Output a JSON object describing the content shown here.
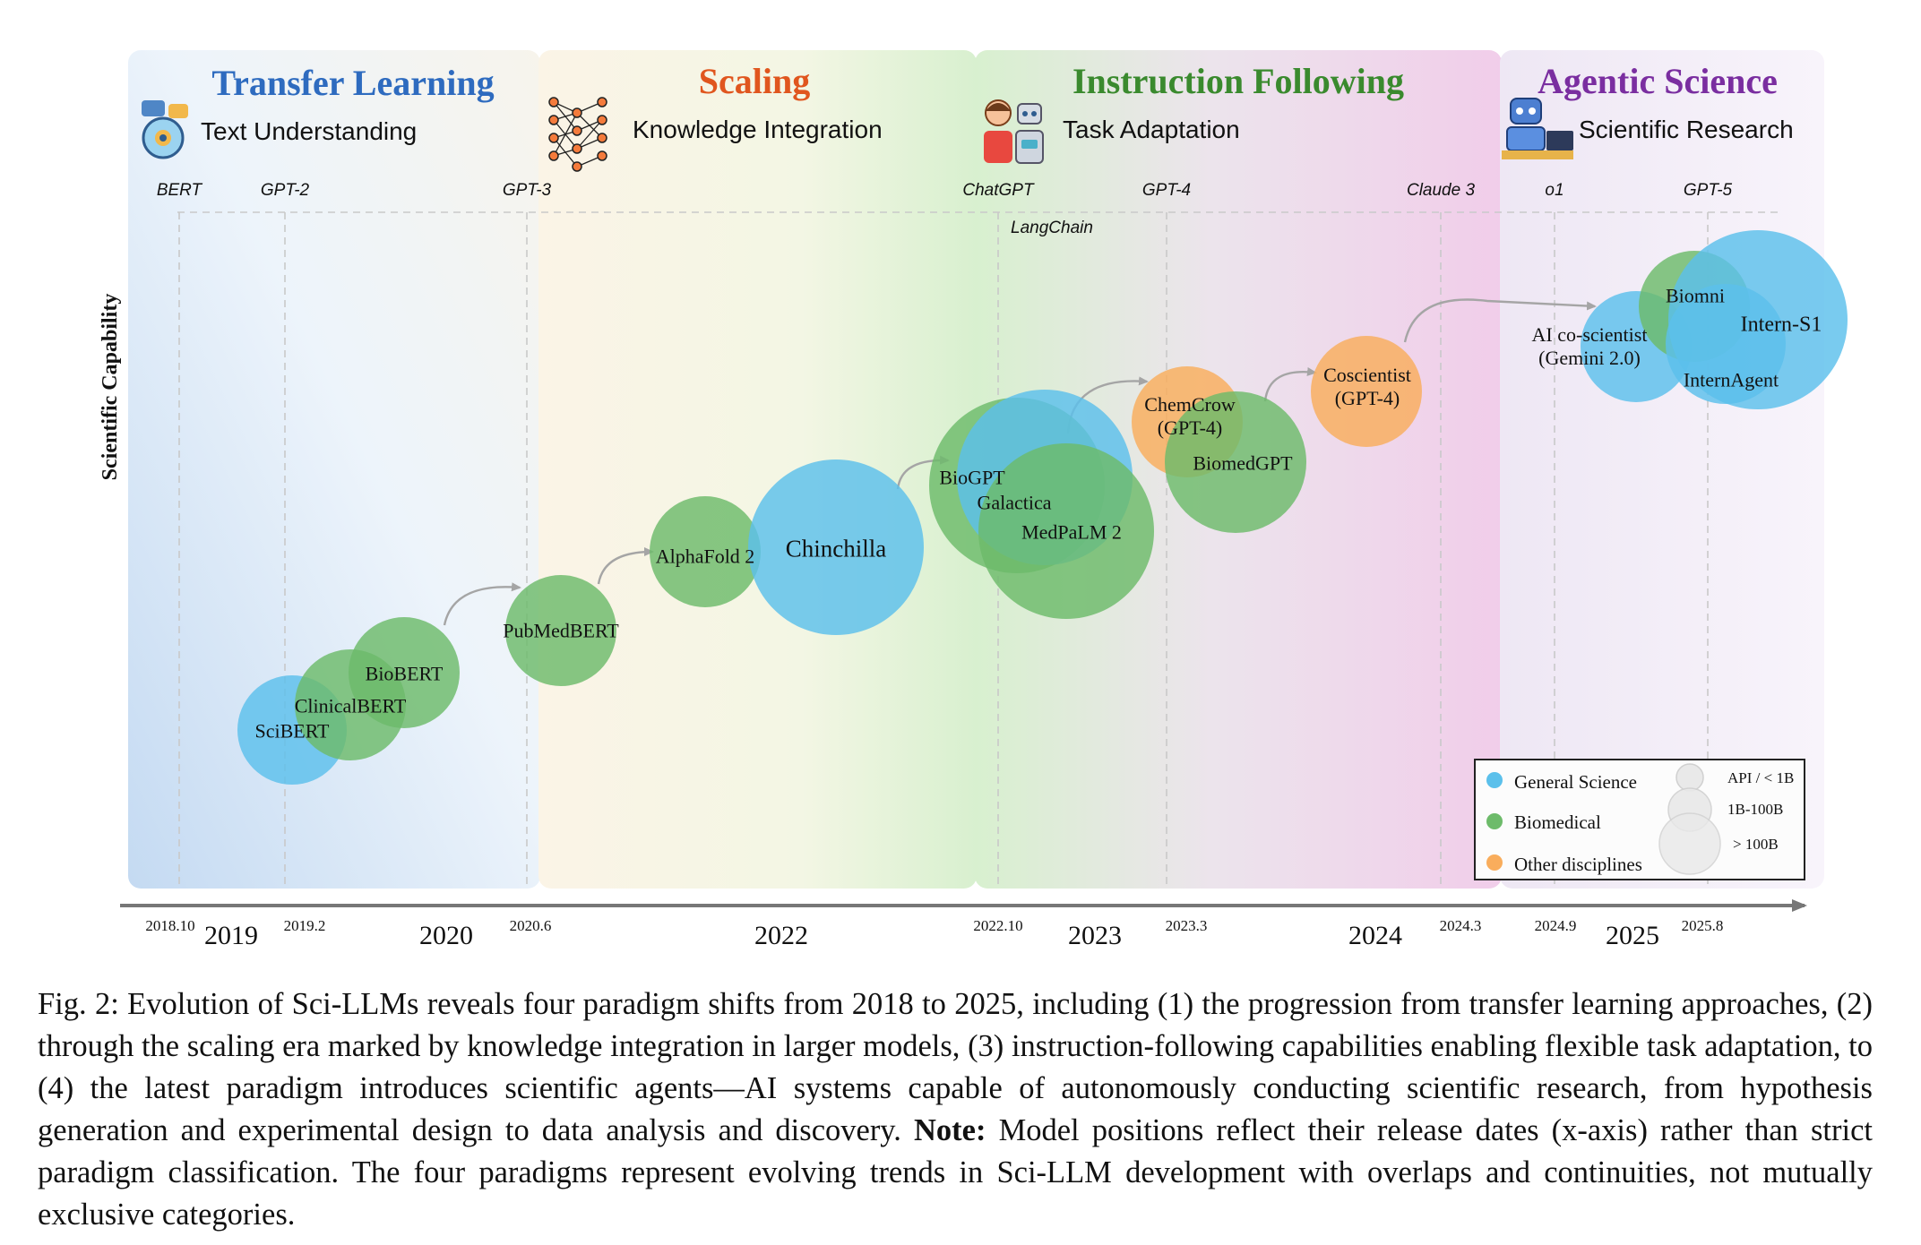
{
  "chart_data": {
    "type": "scatter",
    "ylabel": "Scientific Capability",
    "x_years": [
      "2019",
      "2020",
      "2022",
      "2023",
      "2024",
      "2025"
    ],
    "x_dates": [
      "2018.10",
      "2019.2",
      "2020.6",
      "2022.10",
      "2023.3",
      "2024.3",
      "2024.9",
      "2025.8"
    ],
    "milestones": [
      {
        "label": "BERT",
        "date": 2018.8
      },
      {
        "label": "GPT-2",
        "date": 2019.1
      },
      {
        "label": "GPT-3",
        "date": 2020.4
      },
      {
        "label": "ChatGPT",
        "date": 2022.9
      },
      {
        "label": "LangChain",
        "date": 2022.9
      },
      {
        "label": "GPT-4",
        "date": 2023.2
      },
      {
        "label": "Claude 3",
        "date": 2024.2
      },
      {
        "label": "o1",
        "date": 2024.7
      },
      {
        "label": "GPT-5",
        "date": 2025.6
      }
    ],
    "paradigms": [
      {
        "title": "Transfer Learning",
        "subtitle": "Text Understanding",
        "color": "#2e6bbf",
        "icon": "chat-brain-icon"
      },
      {
        "title": "Scaling",
        "subtitle": "Knowledge Integration",
        "color": "#e0561e",
        "icon": "neural-network-icon"
      },
      {
        "title": "Instruction Following",
        "subtitle": "Task Adaptation",
        "color": "#3a8a2e",
        "icon": "human-robot-icon"
      },
      {
        "title": "Agentic Science",
        "subtitle": "Scientific Research",
        "color": "#7a2ea0",
        "icon": "robot-scientist-icon"
      }
    ],
    "points": [
      {
        "label": "SciBERT",
        "category": "General Science",
        "size": "1B-100B"
      },
      {
        "label": "ClinicalBERT",
        "category": "Biomedical",
        "size": "1B-100B"
      },
      {
        "label": "BioBERT",
        "category": "Biomedical",
        "size": "1B-100B"
      },
      {
        "label": "PubMedBERT",
        "category": "Biomedical",
        "size": "1B-100B"
      },
      {
        "label": "AlphaFold 2",
        "category": "Biomedical",
        "size": "1B-100B"
      },
      {
        "label": "Chinchilla",
        "category": "General Science",
        "size": "> 100B"
      },
      {
        "label": "BioGPT",
        "category": "Biomedical",
        "size": "1B-100B"
      },
      {
        "label": "Galactica",
        "category": "General Science",
        "size": "> 100B"
      },
      {
        "label": "MedPaLM 2",
        "category": "Biomedical",
        "size": "> 100B"
      },
      {
        "label": "ChemCrow\n(GPT-4)",
        "category": "Other disciplines",
        "size": "API / < 1B"
      },
      {
        "label": "BiomedGPT",
        "category": "Biomedical",
        "size": "1B-100B"
      },
      {
        "label": "Coscientist\n(GPT-4)",
        "category": "Other disciplines",
        "size": "API / < 1B"
      },
      {
        "label": "AI co-scientist\n(Gemini 2.0)",
        "category": "General Science",
        "size": "API / < 1B"
      },
      {
        "label": "Biomni",
        "category": "Biomedical",
        "size": "API / < 1B"
      },
      {
        "label": "InternAgent",
        "category": "General Science",
        "size": "1B-100B"
      },
      {
        "label": "Intern-S1",
        "category": "General Science",
        "size": "> 100B"
      }
    ],
    "legend": {
      "categories": [
        {
          "label": "General Science",
          "color": "#5bc0eb"
        },
        {
          "label": "Biomedical",
          "color": "#6dbb6a"
        },
        {
          "label": "Other disciplines",
          "color": "#f9ad5c"
        }
      ],
      "sizes": [
        "API / < 1B",
        "1B-100B",
        "> 100B"
      ],
      "placement": "bottom-right"
    }
  },
  "caption": {
    "fig_label": "Fig. 2:",
    "text": "Evolution of Sci-LLMs reveals four paradigm shifts from 2018 to 2025, including (1) the progression from transfer learning approaches, (2) through the scaling era marked by knowledge integration in larger models, (3) instruction-following capabilities enabling flexible task adaptation, to (4) the latest paradigm introduces scientific agents—AI systems capable of autonomously conducting scientific research, from hypothesis generation and experimental design to data analysis and discovery.",
    "note_label": "Note:",
    "note": "Model positions reflect their release dates (x-axis) rather than strict paradigm classification. The four paradigms represent evolving trends in Sci-LLM development with overlaps and continuities, not mutually exclusive categories."
  }
}
